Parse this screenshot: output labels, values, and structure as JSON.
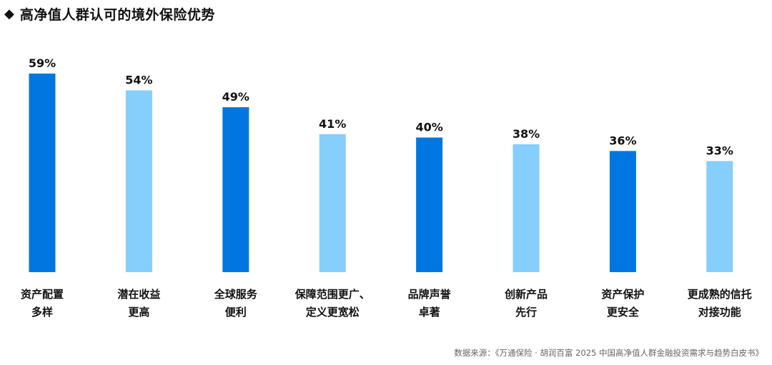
{
  "header": {
    "bullet": "◆",
    "title": "高净值人群认可的境外保险优势"
  },
  "source_note": "数据来源：《万通保险 · 胡润百富 2025 中国高净值人群金融投资需求与趋势白皮书》",
  "colors": {
    "dark_bar": "#0077E0",
    "light_bar": "#86CEFB",
    "label_text": "#111111"
  },
  "chart_data": {
    "type": "bar",
    "categories": [
      [
        "资产配置",
        "多样"
      ],
      [
        "潜在收益",
        "更高"
      ],
      [
        "全球服务",
        "便利"
      ],
      [
        "保障范围更广、",
        "定义更宽松"
      ],
      [
        "品牌声誉",
        "卓著"
      ],
      [
        "创新产品",
        "先行"
      ],
      [
        "资产保护",
        "更安全"
      ],
      [
        "更成熟的信托",
        "对接功能"
      ]
    ],
    "values": [
      59,
      54,
      49,
      41,
      40,
      38,
      36,
      33
    ],
    "value_labels": [
      "59%",
      "54%",
      "49%",
      "41%",
      "40%",
      "38%",
      "36%",
      "33%"
    ],
    "bar_shades": [
      "dark",
      "light",
      "dark",
      "light",
      "dark",
      "light",
      "dark",
      "light"
    ],
    "ylim": [
      0,
      59
    ],
    "grid": false,
    "legend": "none"
  }
}
